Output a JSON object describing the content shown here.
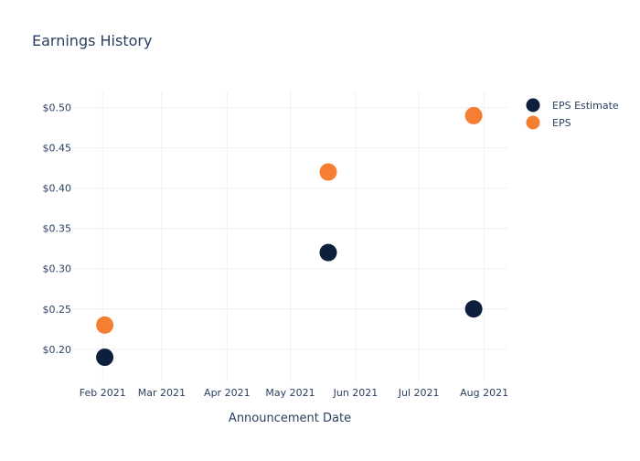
{
  "chart_data": {
    "type": "scatter",
    "title": "Earnings History",
    "xlabel": "Announcement Date",
    "ylabel": "",
    "x_tick_labels": [
      "Feb 2021",
      "Mar 2021",
      "Apr 2021",
      "May 2021",
      "Jun 2021",
      "Jul 2021",
      "Aug 2021"
    ],
    "x_ticks": [
      "2021-02-01",
      "2021-03-01",
      "2021-04-01",
      "2021-05-01",
      "2021-06-01",
      "2021-07-01",
      "2021-08-01"
    ],
    "x_range": [
      "2021-01-18",
      "2021-08-12"
    ],
    "y_tick_labels": [
      "$0.20",
      "$0.25",
      "$0.30",
      "$0.35",
      "$0.40",
      "$0.45",
      "$0.50"
    ],
    "y_ticks": [
      0.2,
      0.25,
      0.3,
      0.35,
      0.4,
      0.45,
      0.5
    ],
    "ylim": [
      0.16,
      0.52
    ],
    "grid": true,
    "legend_position": "top-right",
    "series": [
      {
        "name": "EPS Estimate",
        "color": "#0d1f3d",
        "points": [
          {
            "x": "2021-02-02",
            "y": 0.19
          },
          {
            "x": "2021-05-19",
            "y": 0.32
          },
          {
            "x": "2021-07-27",
            "y": 0.25
          }
        ]
      },
      {
        "name": "EPS",
        "color": "#f47f33",
        "points": [
          {
            "x": "2021-02-02",
            "y": 0.23
          },
          {
            "x": "2021-05-19",
            "y": 0.42
          },
          {
            "x": "2021-07-27",
            "y": 0.49
          }
        ]
      }
    ]
  }
}
